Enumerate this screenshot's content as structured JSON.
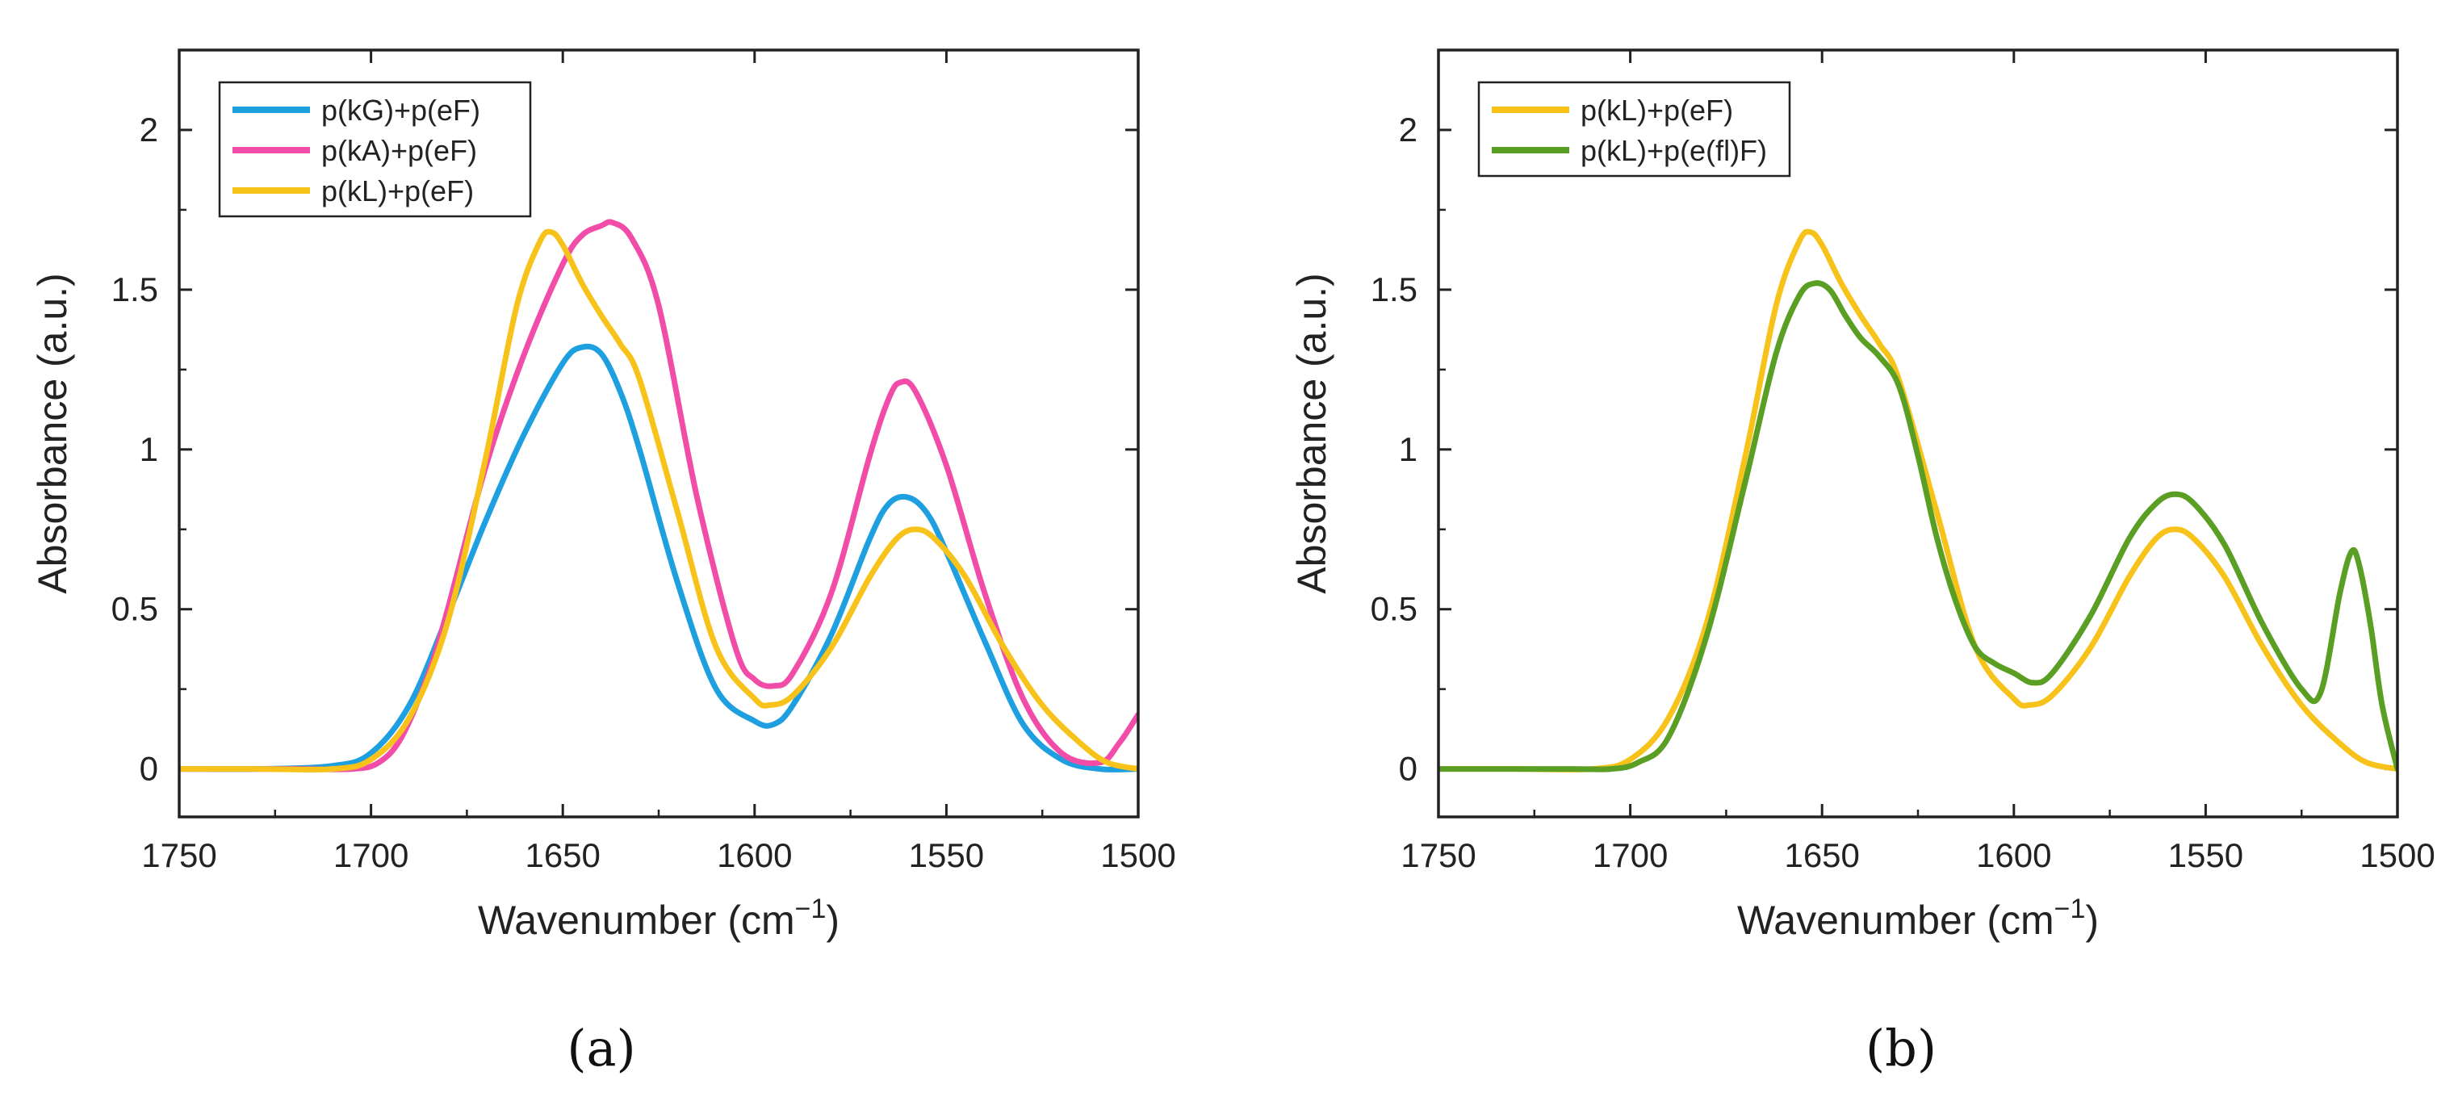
{
  "chart_data": [
    {
      "panel": "a",
      "type": "line",
      "caption": "(a)",
      "xlabel": "Wavenumber (cm",
      "xlabel_sup": "−1",
      "xlabel_close": ")",
      "ylabel": "Absorbance (a.u.)",
      "xlim": [
        1750,
        1500
      ],
      "ylim": [
        -0.15,
        2.25
      ],
      "xticks": [
        1750,
        1700,
        1650,
        1600,
        1550,
        1500
      ],
      "xtick_labels": [
        "1750",
        "1700",
        "1650",
        "1600",
        "1550",
        "1500"
      ],
      "yticks": [
        0,
        0.5,
        1,
        1.5,
        2
      ],
      "ytick_labels": [
        "0",
        "0.5",
        "1",
        "1.5",
        "2"
      ],
      "grid": false,
      "legend_position": "top-left",
      "series": [
        {
          "name": "p(kG)+p(eF)",
          "color": "#1E9FE0",
          "x": [
            1750,
            1730,
            1710,
            1700,
            1690,
            1680,
            1670,
            1660,
            1650,
            1645,
            1640,
            1635,
            1630,
            1620,
            1610,
            1600,
            1595,
            1590,
            1580,
            1570,
            1565,
            1560,
            1555,
            1550,
            1540,
            1530,
            1520,
            1510,
            1500
          ],
          "y": [
            0,
            0,
            0.01,
            0.05,
            0.2,
            0.48,
            0.78,
            1.05,
            1.27,
            1.32,
            1.3,
            1.18,
            1.0,
            0.58,
            0.25,
            0.15,
            0.14,
            0.2,
            0.42,
            0.72,
            0.83,
            0.85,
            0.8,
            0.68,
            0.4,
            0.14,
            0.03,
            0,
            0
          ]
        },
        {
          "name": "p(kA)+p(eF)",
          "color": "#F14DA8",
          "x": [
            1750,
            1720,
            1705,
            1698,
            1692,
            1685,
            1680,
            1670,
            1660,
            1650,
            1645,
            1640,
            1637,
            1632,
            1625,
            1615,
            1605,
            1600,
            1595,
            1590,
            1580,
            1570,
            1565,
            1562,
            1558,
            1550,
            1540,
            1530,
            1520,
            1510,
            1505,
            1500
          ],
          "y": [
            0,
            0,
            0,
            0.02,
            0.1,
            0.3,
            0.5,
            0.95,
            1.3,
            1.58,
            1.67,
            1.7,
            1.71,
            1.66,
            1.45,
            0.85,
            0.38,
            0.28,
            0.26,
            0.3,
            0.55,
            0.98,
            1.16,
            1.21,
            1.18,
            0.95,
            0.55,
            0.22,
            0.05,
            0.02,
            0.08,
            0.17
          ]
        },
        {
          "name": "p(kL)+p(eF)",
          "color": "#F7C21A",
          "x": [
            1750,
            1730,
            1710,
            1700,
            1690,
            1680,
            1670,
            1662,
            1656,
            1653,
            1650,
            1645,
            1640,
            1635,
            1630,
            1620,
            1610,
            1600,
            1596,
            1590,
            1580,
            1570,
            1563,
            1558,
            1553,
            1545,
            1535,
            1525,
            1515,
            1508,
            1500
          ],
          "y": [
            0,
            0,
            0,
            0.03,
            0.16,
            0.46,
            0.98,
            1.45,
            1.65,
            1.68,
            1.64,
            1.52,
            1.42,
            1.33,
            1.22,
            0.8,
            0.38,
            0.22,
            0.2,
            0.23,
            0.38,
            0.6,
            0.72,
            0.75,
            0.72,
            0.6,
            0.38,
            0.2,
            0.08,
            0.02,
            0
          ]
        }
      ]
    },
    {
      "panel": "b",
      "type": "line",
      "caption": "(b)",
      "xlabel": "Wavenumber (cm",
      "xlabel_sup": "−1",
      "xlabel_close": ")",
      "ylabel": "Absorbance (a.u.)",
      "xlim": [
        1750,
        1500
      ],
      "ylim": [
        -0.15,
        2.25
      ],
      "xticks": [
        1750,
        1700,
        1650,
        1600,
        1550,
        1500
      ],
      "xtick_labels": [
        "1750",
        "1700",
        "1650",
        "1600",
        "1550",
        "1500"
      ],
      "yticks": [
        0,
        0.5,
        1,
        1.5,
        2
      ],
      "ytick_labels": [
        "0",
        "0.5",
        "1",
        "1.5",
        "2"
      ],
      "grid": false,
      "legend_position": "top-left",
      "series": [
        {
          "name": "p(kL)+p(eF)",
          "color": "#F7C21A",
          "x": [
            1750,
            1730,
            1710,
            1700,
            1690,
            1680,
            1670,
            1662,
            1656,
            1653,
            1650,
            1645,
            1640,
            1635,
            1630,
            1620,
            1610,
            1600,
            1596,
            1590,
            1580,
            1570,
            1563,
            1558,
            1553,
            1545,
            1535,
            1525,
            1515,
            1508,
            1500
          ],
          "y": [
            0,
            0,
            0,
            0.03,
            0.16,
            0.46,
            0.98,
            1.45,
            1.65,
            1.68,
            1.64,
            1.52,
            1.42,
            1.33,
            1.22,
            0.8,
            0.38,
            0.22,
            0.2,
            0.23,
            0.38,
            0.6,
            0.72,
            0.75,
            0.72,
            0.6,
            0.38,
            0.2,
            0.08,
            0.02,
            0
          ]
        },
        {
          "name": "p(kL)+p(e(fl)F)",
          "color": "#5A9E24",
          "x": [
            1750,
            1730,
            1715,
            1705,
            1698,
            1690,
            1680,
            1670,
            1662,
            1656,
            1652,
            1648,
            1644,
            1640,
            1635,
            1630,
            1625,
            1620,
            1615,
            1610,
            1605,
            1600,
            1595,
            1590,
            1580,
            1570,
            1563,
            1558,
            1553,
            1545,
            1535,
            1525,
            1520,
            1515,
            1512,
            1510,
            1507,
            1504,
            1500
          ],
          "y": [
            0,
            0,
            0,
            0,
            0.02,
            0.1,
            0.42,
            0.9,
            1.3,
            1.48,
            1.52,
            1.5,
            1.42,
            1.35,
            1.29,
            1.2,
            0.98,
            0.72,
            0.52,
            0.38,
            0.33,
            0.3,
            0.27,
            0.3,
            0.48,
            0.72,
            0.83,
            0.86,
            0.83,
            0.7,
            0.45,
            0.25,
            0.24,
            0.55,
            0.68,
            0.64,
            0.45,
            0.2,
            0
          ]
        }
      ]
    }
  ]
}
